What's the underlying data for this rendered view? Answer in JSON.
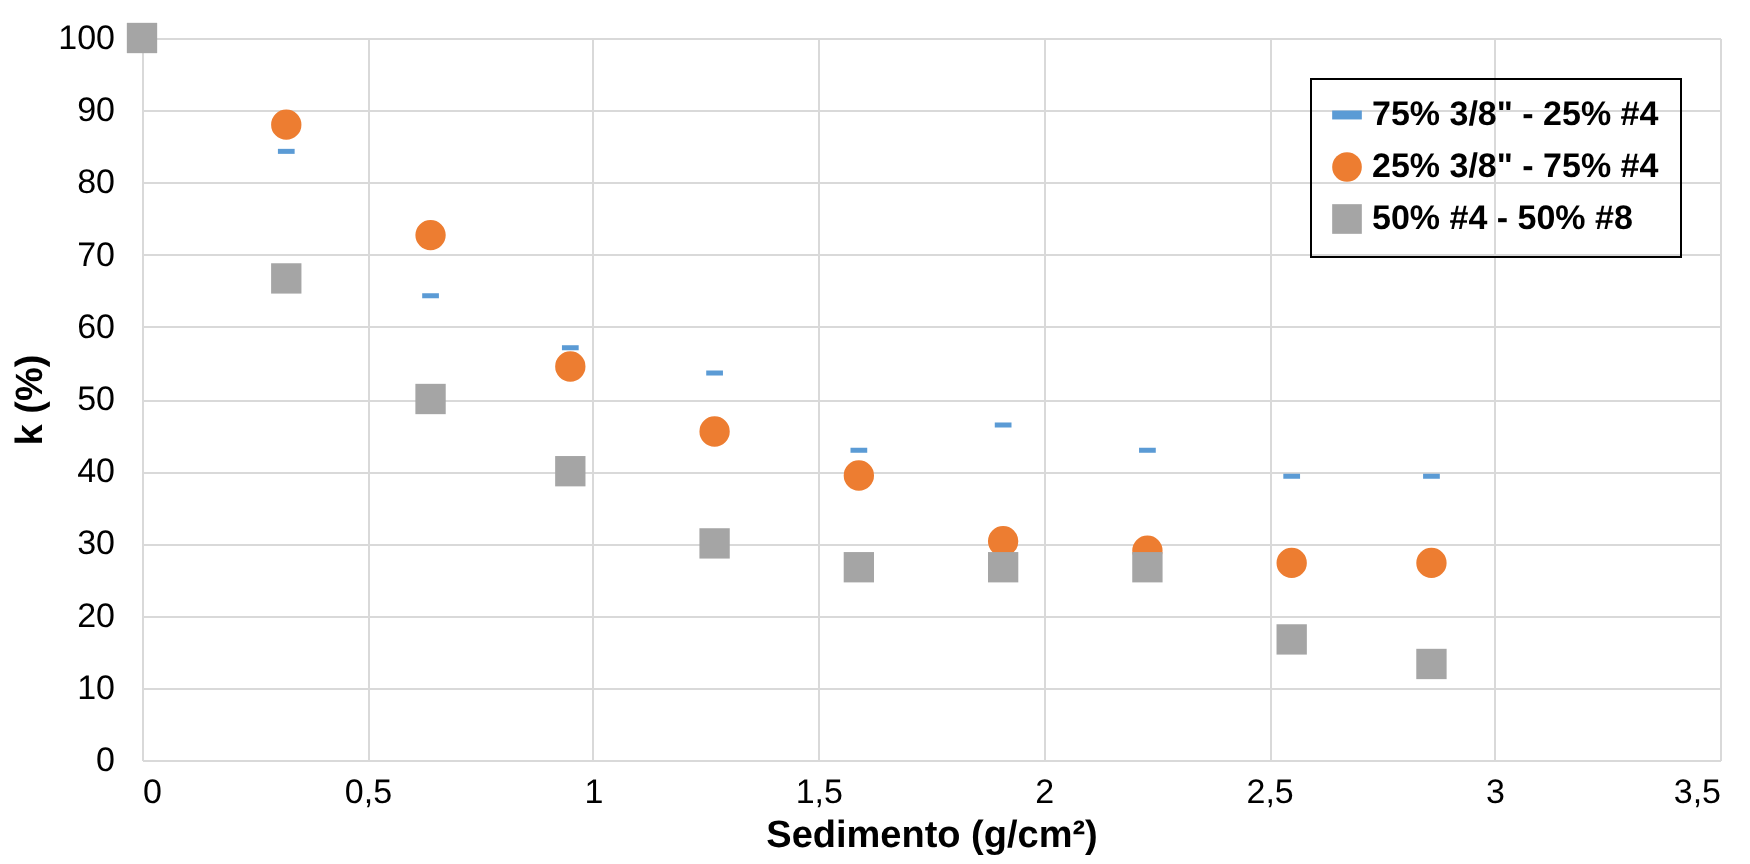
{
  "chart_data": {
    "type": "scatter",
    "xlabel": "Sedimento (g/cm²)",
    "ylabel": "k (%)",
    "x": [
      0,
      0.32,
      0.64,
      0.95,
      1.27,
      1.59,
      1.91,
      2.23,
      2.55,
      2.86
    ],
    "series": [
      {
        "name": "75% 3/8\" - 25% #4",
        "color": "#5b9bd5",
        "values": [
          null,
          84.3,
          64.3,
          57.1,
          53.6,
          42.9,
          46.4,
          42.9,
          39.3,
          39.3
        ]
      },
      {
        "name": "25% 3/8\" - 75% #4",
        "color": "#ed7d31",
        "marker": "circle",
        "values": [
          null,
          88,
          72.7,
          54.5,
          45.5,
          39.4,
          30.3,
          29,
          27.3,
          27.3
        ]
      },
      {
        "name": "50% #4 - 50% #8",
        "color": "#a5a5a5",
        "marker": "square",
        "values": [
          100,
          66.7,
          50,
          40,
          30,
          26.7,
          26.7,
          26.7,
          16.7,
          13.3
        ]
      }
    ],
    "xlim": [
      0,
      3.5
    ],
    "xticks": [
      0,
      {
        "value": 0.5,
        "label": "0,5"
      },
      1,
      {
        "value": 1.5,
        "label": "1,5"
      },
      2,
      {
        "value": 2.5,
        "label": "2,5"
      },
      3,
      {
        "value": 3.5,
        "label": "3,5"
      }
    ],
    "ylim": [
      0,
      100
    ],
    "yticks": [
      0,
      10,
      20,
      30,
      40,
      50,
      60,
      70,
      80,
      90,
      100
    ],
    "grid": true,
    "legend": "top right"
  }
}
